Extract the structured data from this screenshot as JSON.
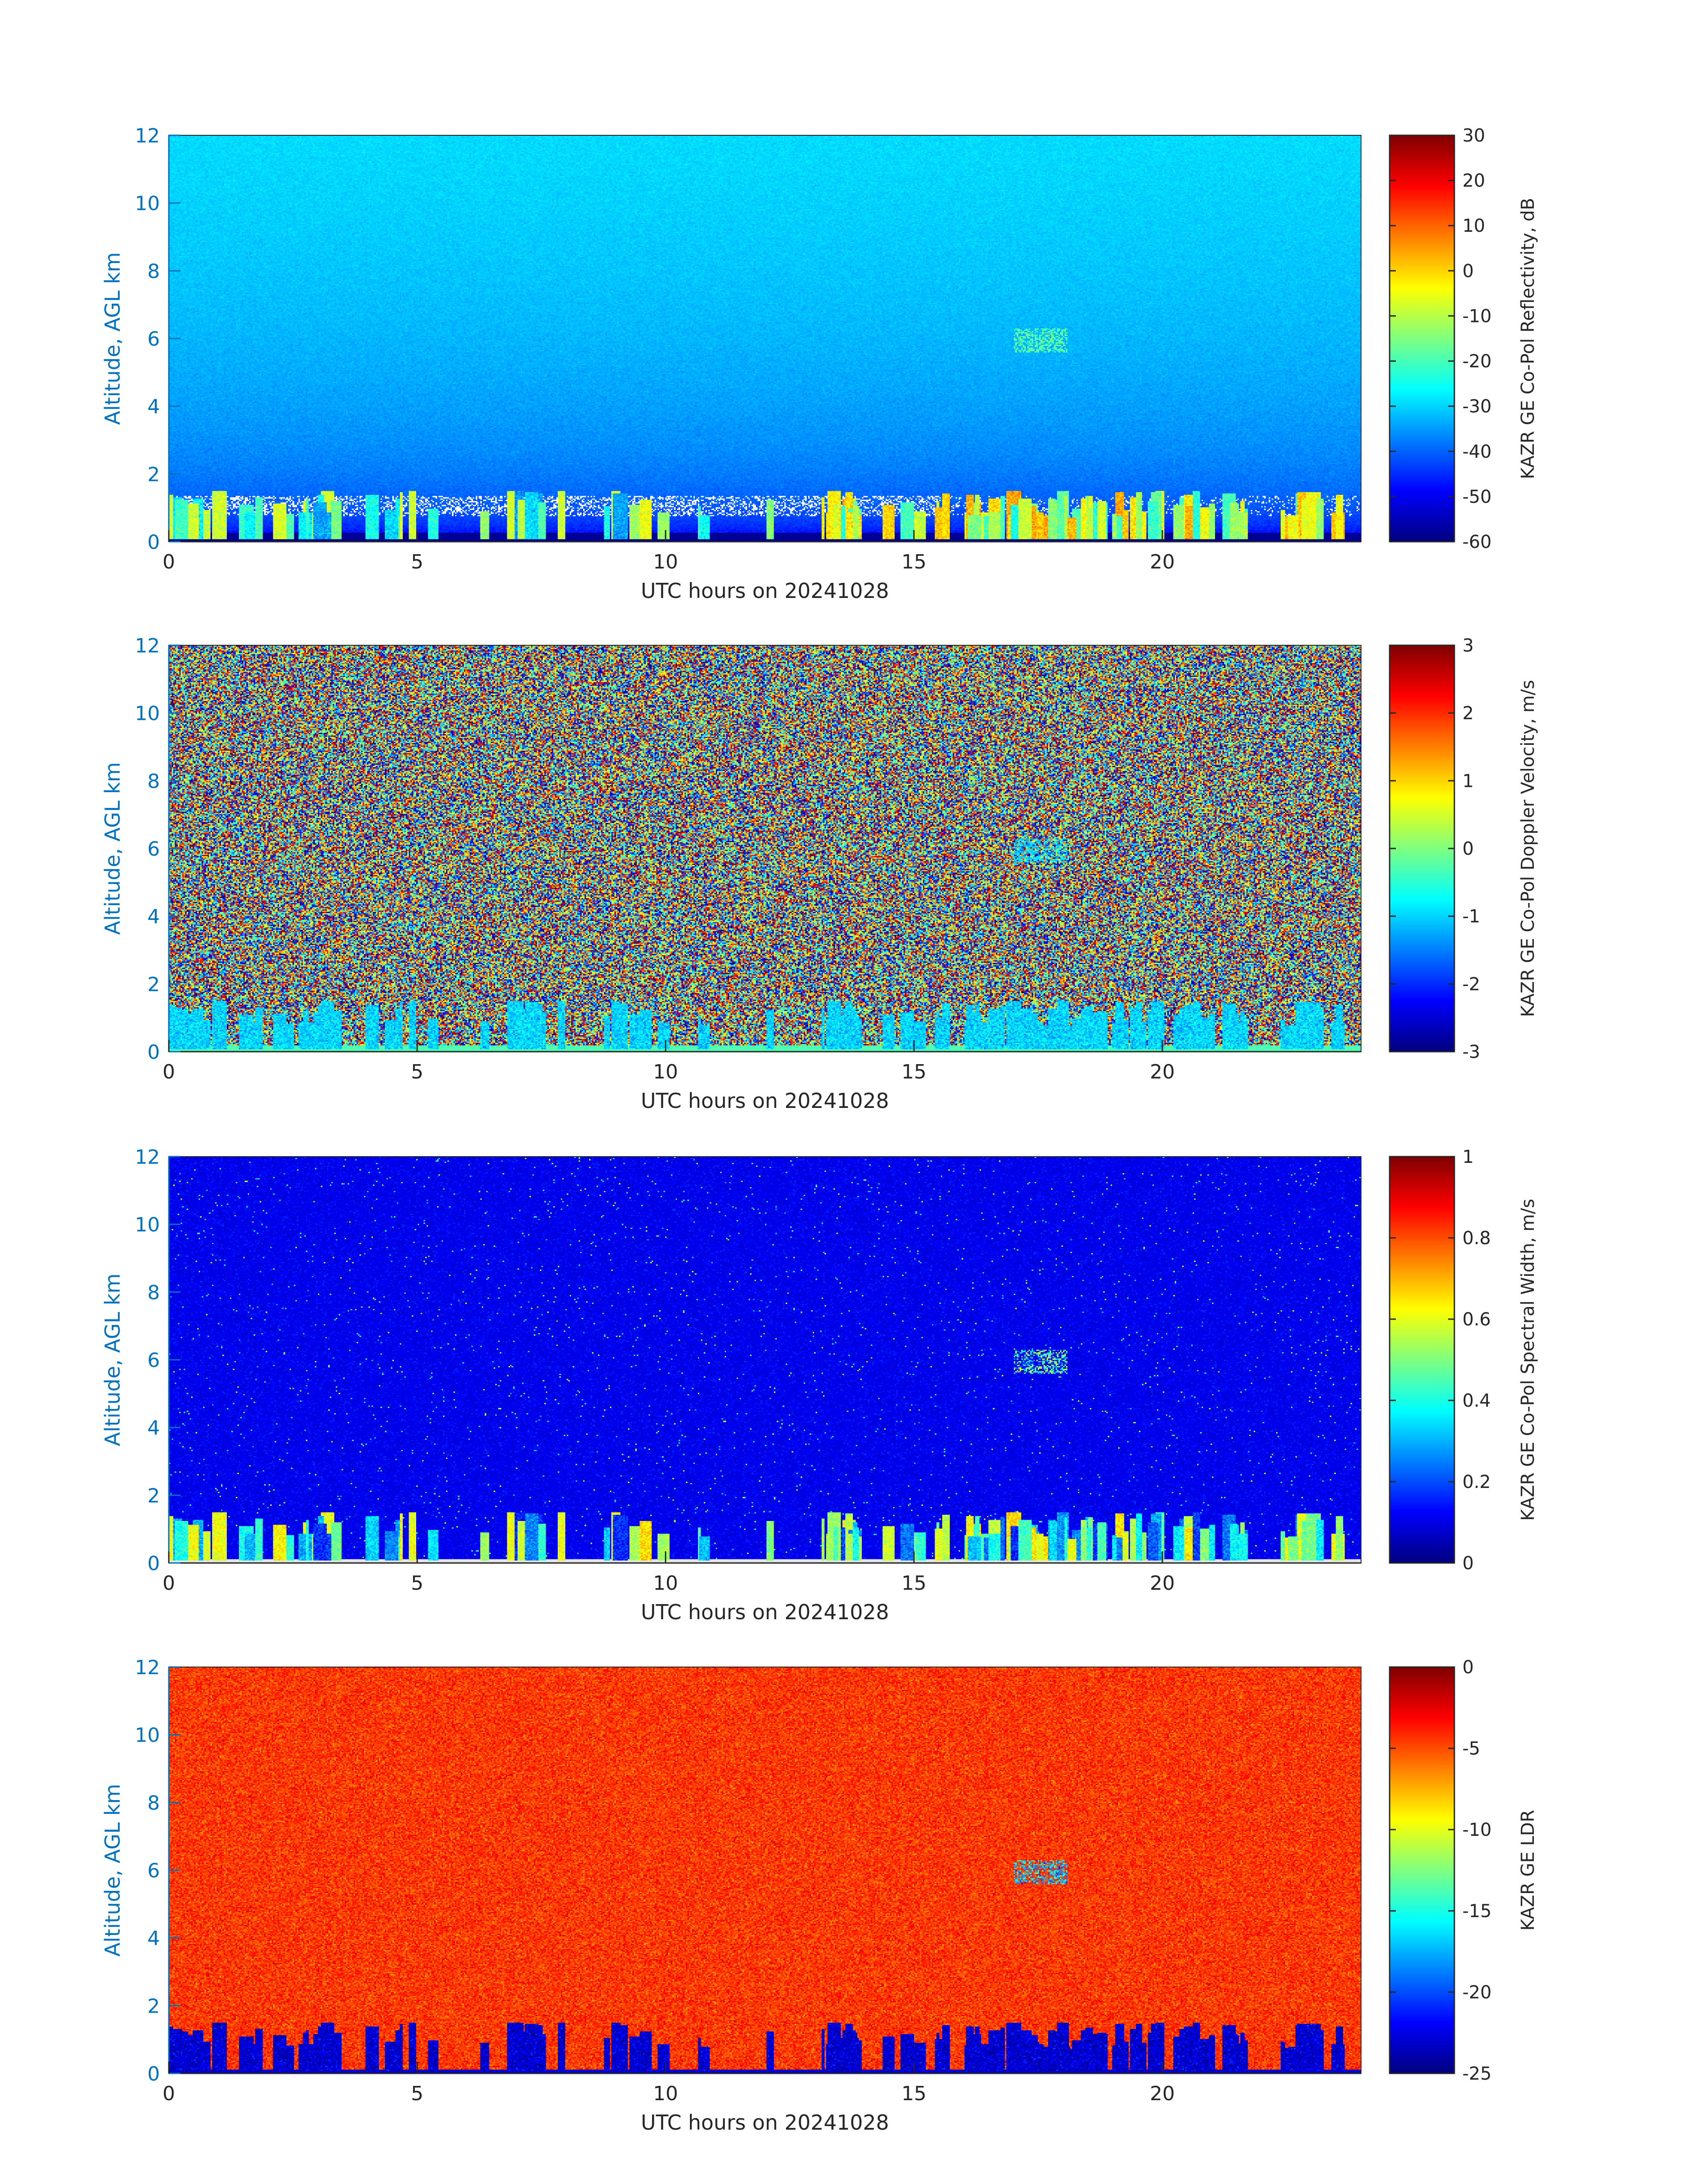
{
  "colors": {
    "y_axis_text": "#0072BD",
    "x_axis_text": "#262626",
    "axis_line": "#262626"
  },
  "chart_data": [
    {
      "type": "heatmap",
      "panel": 1,
      "xlabel": "UTC hours on 20241028",
      "ylabel": "Altitude, AGL km",
      "xlim": [
        0,
        24
      ],
      "ylim": [
        0,
        12
      ],
      "xticks": [
        0,
        5,
        10,
        15,
        20
      ],
      "yticks": [
        0,
        2,
        4,
        6,
        8,
        10,
        12
      ],
      "colorbar": {
        "label": "KAZR GE Co-Pol Reflectivity, dB",
        "min": -60,
        "max": 30,
        "ticks": [
          -60,
          -50,
          -40,
          -30,
          -20,
          -10,
          0,
          10,
          20,
          30
        ],
        "colormap": "jet"
      },
      "field": "reflectivity",
      "grid": false
    },
    {
      "type": "heatmap",
      "panel": 2,
      "xlabel": "UTC hours on 20241028",
      "ylabel": "Altitude, AGL km",
      "xlim": [
        0,
        24
      ],
      "ylim": [
        0,
        12
      ],
      "xticks": [
        0,
        5,
        10,
        15,
        20
      ],
      "yticks": [
        0,
        2,
        4,
        6,
        8,
        10,
        12
      ],
      "colorbar": {
        "label": "KAZR GE Co-Pol Doppler Velocity, m/s",
        "min": -3,
        "max": 3,
        "ticks": [
          -3,
          -2,
          -1,
          0,
          1,
          2,
          3
        ],
        "colormap": "jet"
      },
      "field": "velocity",
      "grid": false
    },
    {
      "type": "heatmap",
      "panel": 3,
      "xlabel": "UTC hours on 20241028",
      "ylabel": "Altitude, AGL km",
      "xlim": [
        0,
        24
      ],
      "ylim": [
        0,
        12
      ],
      "xticks": [
        0,
        5,
        10,
        15,
        20
      ],
      "yticks": [
        0,
        2,
        4,
        6,
        8,
        10,
        12
      ],
      "colorbar": {
        "label": "KAZR GE Co-Pol Spectral Width, m/s",
        "min": 0,
        "max": 1,
        "ticks": [
          0,
          0.2,
          0.4,
          0.6,
          0.8,
          1
        ],
        "colormap": "jet"
      },
      "field": "width",
      "grid": false
    },
    {
      "type": "heatmap",
      "panel": 4,
      "xlabel": "UTC hours on 20241028",
      "ylabel": "Altitude, AGL km",
      "xlim": [
        0,
        24
      ],
      "ylim": [
        0,
        12
      ],
      "xticks": [
        0,
        5,
        10,
        15,
        20
      ],
      "yticks": [
        0,
        2,
        4,
        6,
        8,
        10,
        12
      ],
      "colorbar": {
        "label": "KAZR GE LDR",
        "min": -25,
        "max": 0,
        "ticks": [
          -25,
          -20,
          -15,
          -10,
          -5,
          0
        ],
        "colormap": "jet"
      },
      "field": "ldr",
      "grid": false
    }
  ]
}
